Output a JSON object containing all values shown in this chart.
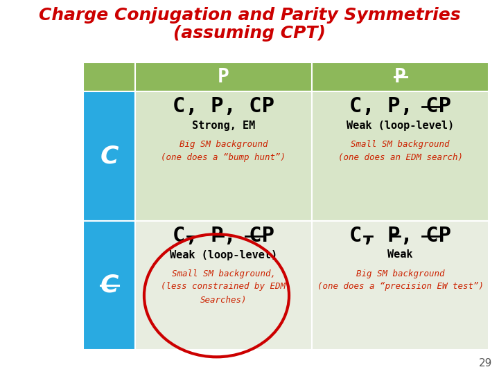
{
  "title_line1": "Charge Conjugation and Parity Symmetries",
  "title_line2": "(assuming CPT)",
  "title_color": "#cc0000",
  "title_fontsize": 18,
  "background_color": "#ffffff",
  "header_bg_color": "#8db85a",
  "row_header_bg_color": "#29aae1",
  "cell_bg_color_top": "#d8e5c8",
  "cell_bg_color_bot": "#e8ede0",
  "main_text_fontsize": 22,
  "sub_text_fontsize": 11,
  "note_text_fontsize": 9,
  "note_text_color": "#cc2200",
  "sub_text_color": "#000000",
  "main_text_color": "#000000",
  "header_text_color": "#ffffff",
  "circle_color": "#cc0000",
  "circle_linewidth": 3,
  "page_number": "29",
  "cells": [
    {
      "row": 0,
      "col": 0,
      "sub_text": "Strong, EM",
      "note_text": "Big SM background\n(one does a “bump hunt”)",
      "strikethrough": []
    },
    {
      "row": 0,
      "col": 1,
      "sub_text": "Weak (loop-level)",
      "note_text": "Small SM background\n(one does an EDM search)",
      "strikethrough": [
        "CP"
      ]
    },
    {
      "row": 1,
      "col": 0,
      "sub_text": "Weak (loop-level)",
      "note_text": "Small SM background,\n(less constrained by EDM\nSearches)",
      "strikethrough": [
        "C",
        "P",
        "CP"
      ],
      "circle": true
    },
    {
      "row": 1,
      "col": 1,
      "sub_text": "Weak",
      "note_text": "Big SM background\n(one does a “precision EW test”)",
      "strikethrough": [
        "C",
        "P",
        "CP"
      ]
    }
  ]
}
